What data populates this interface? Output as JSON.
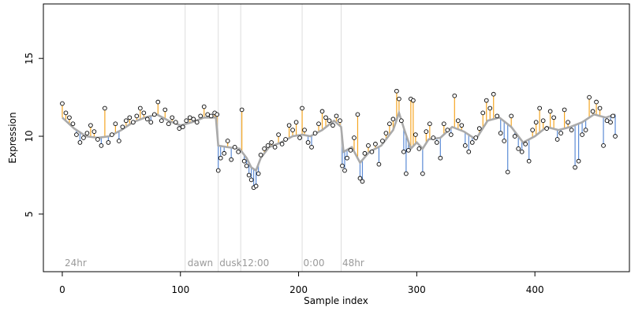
{
  "chart_data": {
    "type": "scatter",
    "xlabel": "Sample index",
    "ylabel": "Expression",
    "xlim": [
      -16,
      480
    ],
    "ylim": [
      1.3,
      18.5
    ],
    "x_ticks": [
      0,
      100,
      200,
      300,
      400
    ],
    "y_ticks": [
      5,
      10,
      15
    ],
    "grid": false,
    "legend": "none",
    "colors": {
      "above_fit": "#f5a623",
      "below_fit": "#5b8bd6",
      "fit_line": "#aaaaaa",
      "marker_vlines": "#dddddd",
      "points": "#000000"
    },
    "annotations": [
      {
        "label": "24hr",
        "x": 2
      },
      {
        "label": "dawn",
        "x": 106
      },
      {
        "label": "dusk",
        "x": 133
      },
      {
        "label": "12:00",
        "x": 152
      },
      {
        "label": "0:00",
        "x": 204
      },
      {
        "label": "48hr",
        "x": 237
      }
    ],
    "marker_lines_x": [
      104,
      132,
      151,
      203,
      236
    ],
    "series": [
      {
        "points": [
          [
            0,
            12.1
          ],
          [
            3,
            11.5
          ],
          [
            6,
            11.2
          ],
          [
            9,
            10.8
          ],
          [
            12,
            10.1
          ],
          [
            15,
            9.6
          ],
          [
            18,
            9.9
          ],
          [
            21,
            10.2
          ],
          [
            24,
            10.7
          ],
          [
            27,
            10.3
          ],
          [
            30,
            9.8
          ],
          [
            33,
            9.4
          ],
          [
            36,
            11.8
          ],
          [
            39,
            9.6
          ],
          [
            42,
            10.1
          ],
          [
            45,
            10.8
          ],
          [
            48,
            9.7
          ],
          [
            51,
            10.6
          ],
          [
            54,
            11.0
          ],
          [
            57,
            11.2
          ],
          [
            60,
            10.9
          ],
          [
            63,
            11.3
          ],
          [
            66,
            11.8
          ],
          [
            69,
            11.5
          ],
          [
            72,
            11.1
          ],
          [
            75,
            10.9
          ],
          [
            78,
            11.4
          ],
          [
            81,
            12.2
          ],
          [
            84,
            11.0
          ],
          [
            87,
            11.7
          ],
          [
            90,
            10.8
          ],
          [
            93,
            11.2
          ],
          [
            96,
            10.9
          ],
          [
            99,
            10.5
          ],
          [
            102,
            10.6
          ],
          [
            105,
            11.0
          ],
          [
            108,
            11.2
          ],
          [
            111,
            11.1
          ],
          [
            114,
            10.9
          ],
          [
            117,
            11.3
          ],
          [
            120,
            11.9
          ],
          [
            123,
            11.4
          ],
          [
            126,
            11.3
          ],
          [
            129,
            11.5
          ],
          [
            131,
            11.4
          ],
          [
            132,
            7.8
          ],
          [
            134,
            8.6
          ],
          [
            137,
            8.9
          ],
          [
            140,
            9.7
          ],
          [
            143,
            8.5
          ],
          [
            146,
            9.3
          ],
          [
            149,
            9.0
          ],
          [
            152,
            11.7
          ],
          [
            154,
            8.4
          ],
          [
            156,
            8.1
          ],
          [
            158,
            7.5
          ],
          [
            160,
            7.2
          ],
          [
            162,
            6.7
          ],
          [
            164,
            6.8
          ],
          [
            166,
            7.6
          ],
          [
            168,
            8.8
          ],
          [
            171,
            9.2
          ],
          [
            174,
            9.4
          ],
          [
            177,
            9.6
          ],
          [
            180,
            9.3
          ],
          [
            183,
            10.1
          ],
          [
            186,
            9.5
          ],
          [
            189,
            9.8
          ],
          [
            192,
            10.7
          ],
          [
            195,
            10.4
          ],
          [
            198,
            10.9
          ],
          [
            201,
            9.9
          ],
          [
            203,
            11.8
          ],
          [
            205,
            10.4
          ],
          [
            208,
            9.6
          ],
          [
            211,
            9.3
          ],
          [
            214,
            10.2
          ],
          [
            217,
            10.8
          ],
          [
            220,
            11.6
          ],
          [
            223,
            11.2
          ],
          [
            226,
            11.0
          ],
          [
            229,
            10.7
          ],
          [
            232,
            11.3
          ],
          [
            235,
            11.0
          ],
          [
            237,
            8.1
          ],
          [
            239,
            7.8
          ],
          [
            241,
            8.6
          ],
          [
            244,
            9.1
          ],
          [
            247,
            9.9
          ],
          [
            250,
            11.4
          ],
          [
            252,
            7.3
          ],
          [
            254,
            7.1
          ],
          [
            256,
            8.9
          ],
          [
            259,
            9.4
          ],
          [
            262,
            9.0
          ],
          [
            265,
            9.5
          ],
          [
            268,
            8.2
          ],
          [
            271,
            9.7
          ],
          [
            274,
            10.2
          ],
          [
            277,
            10.8
          ],
          [
            280,
            11.1
          ],
          [
            283,
            12.9
          ],
          [
            285,
            12.4
          ],
          [
            287,
            11.0
          ],
          [
            289,
            9.0
          ],
          [
            291,
            7.6
          ],
          [
            293,
            9.1
          ],
          [
            295,
            12.4
          ],
          [
            297,
            12.3
          ],
          [
            299,
            10.1
          ],
          [
            302,
            9.2
          ],
          [
            305,
            7.6
          ],
          [
            308,
            10.3
          ],
          [
            311,
            10.8
          ],
          [
            314,
            9.9
          ],
          [
            317,
            9.6
          ],
          [
            320,
            8.6
          ],
          [
            323,
            10.8
          ],
          [
            326,
            10.4
          ],
          [
            329,
            10.1
          ],
          [
            332,
            12.6
          ],
          [
            335,
            11.0
          ],
          [
            338,
            10.7
          ],
          [
            341,
            9.4
          ],
          [
            344,
            9.0
          ],
          [
            347,
            9.6
          ],
          [
            350,
            9.9
          ],
          [
            353,
            10.5
          ],
          [
            356,
            11.5
          ],
          [
            359,
            12.3
          ],
          [
            362,
            11.8
          ],
          [
            365,
            12.7
          ],
          [
            368,
            11.3
          ],
          [
            371,
            10.2
          ],
          [
            374,
            9.7
          ],
          [
            377,
            7.7
          ],
          [
            380,
            11.3
          ],
          [
            383,
            10.0
          ],
          [
            386,
            9.2
          ],
          [
            389,
            9.0
          ],
          [
            392,
            9.5
          ],
          [
            395,
            8.4
          ],
          [
            398,
            10.4
          ],
          [
            401,
            10.9
          ],
          [
            404,
            11.8
          ],
          [
            407,
            11.0
          ],
          [
            410,
            10.5
          ],
          [
            413,
            11.6
          ],
          [
            416,
            11.2
          ],
          [
            419,
            9.8
          ],
          [
            422,
            10.2
          ],
          [
            425,
            11.7
          ],
          [
            428,
            10.9
          ],
          [
            431,
            10.4
          ],
          [
            434,
            8.0
          ],
          [
            437,
            8.4
          ],
          [
            440,
            10.1
          ],
          [
            443,
            10.4
          ],
          [
            446,
            12.5
          ],
          [
            449,
            11.6
          ],
          [
            452,
            12.2
          ],
          [
            455,
            11.8
          ],
          [
            458,
            9.4
          ],
          [
            461,
            11.0
          ],
          [
            464,
            10.9
          ],
          [
            466,
            11.3
          ],
          [
            468,
            10.0
          ]
        ]
      }
    ],
    "fit": [
      [
        0,
        11.2
      ],
      [
        10,
        10.5
      ],
      [
        20,
        10.0
      ],
      [
        30,
        9.9
      ],
      [
        40,
        10.0
      ],
      [
        50,
        10.4
      ],
      [
        60,
        10.9
      ],
      [
        70,
        11.2
      ],
      [
        80,
        11.4
      ],
      [
        90,
        11.0
      ],
      [
        100,
        10.7
      ],
      [
        110,
        10.9
      ],
      [
        120,
        11.2
      ],
      [
        130,
        11.2
      ],
      [
        132,
        9.4
      ],
      [
        140,
        9.3
      ],
      [
        150,
        9.2
      ],
      [
        156,
        8.6
      ],
      [
        160,
        8.0
      ],
      [
        164,
        7.8
      ],
      [
        168,
        8.6
      ],
      [
        175,
        9.3
      ],
      [
        185,
        9.6
      ],
      [
        195,
        10.0
      ],
      [
        203,
        10.1
      ],
      [
        210,
        10.0
      ],
      [
        220,
        10.4
      ],
      [
        230,
        11.0
      ],
      [
        236,
        10.6
      ],
      [
        238,
        9.0
      ],
      [
        245,
        9.3
      ],
      [
        252,
        8.3
      ],
      [
        260,
        9.0
      ],
      [
        270,
        9.4
      ],
      [
        280,
        10.4
      ],
      [
        285,
        11.5
      ],
      [
        290,
        10.3
      ],
      [
        295,
        9.2
      ],
      [
        300,
        9.6
      ],
      [
        305,
        9.2
      ],
      [
        310,
        9.8
      ],
      [
        320,
        9.9
      ],
      [
        330,
        10.6
      ],
      [
        340,
        10.3
      ],
      [
        350,
        9.8
      ],
      [
        360,
        11.0
      ],
      [
        370,
        11.2
      ],
      [
        380,
        10.6
      ],
      [
        390,
        9.6
      ],
      [
        400,
        10.0
      ],
      [
        410,
        10.6
      ],
      [
        420,
        10.4
      ],
      [
        430,
        10.6
      ],
      [
        440,
        10.9
      ],
      [
        450,
        11.4
      ],
      [
        460,
        11.2
      ],
      [
        468,
        11.4
      ]
    ]
  }
}
